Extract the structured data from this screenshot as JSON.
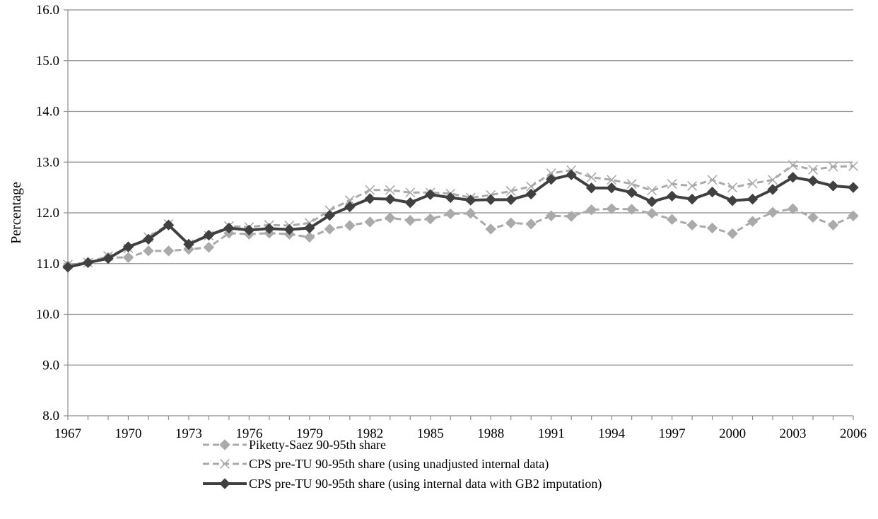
{
  "chart_data": {
    "type": "line",
    "title": "",
    "xlabel": "",
    "ylabel": "Percentage",
    "ylim": [
      8.0,
      16.0
    ],
    "yticks": [
      "8.0",
      "9.0",
      "10.0",
      "11.0",
      "12.0",
      "13.0",
      "14.0",
      "15.0",
      "16.0"
    ],
    "xlim": [
      1967,
      2006
    ],
    "xticks": [
      "1967",
      "1970",
      "1973",
      "1976",
      "1979",
      "1982",
      "1985",
      "1988",
      "1991",
      "1994",
      "1997",
      "2000",
      "2003",
      "2006"
    ],
    "grid": "horizontal",
    "legend_position": "bottom",
    "x": [
      1967,
      1968,
      1969,
      1970,
      1971,
      1972,
      1973,
      1974,
      1975,
      1976,
      1977,
      1978,
      1979,
      1980,
      1981,
      1982,
      1983,
      1984,
      1985,
      1986,
      1987,
      1988,
      1989,
      1990,
      1991,
      1992,
      1993,
      1994,
      1995,
      1996,
      1997,
      1998,
      1999,
      2000,
      2001,
      2002,
      2003,
      2004,
      2005,
      2006
    ],
    "series": [
      {
        "name": "Piketty-Saez 90-95th share",
        "color": "#aaaaaa",
        "line": "dashed",
        "marker": "diamond",
        "values": [
          10.96,
          11.02,
          11.12,
          11.12,
          11.25,
          11.25,
          11.28,
          11.32,
          11.6,
          11.58,
          11.6,
          11.58,
          11.52,
          11.68,
          11.75,
          11.82,
          11.9,
          11.85,
          11.88,
          11.98,
          11.99,
          11.68,
          11.8,
          11.78,
          11.94,
          11.93,
          12.06,
          12.08,
          12.07,
          11.99,
          11.87,
          11.76,
          11.7,
          11.59,
          11.83,
          12.01,
          12.08,
          11.91,
          11.76,
          11.94
        ]
      },
      {
        "name": "CPS pre-TU 90-95th share (using unadjusted internal data)",
        "color": "#aaaaaa",
        "line": "dashed",
        "marker": "x",
        "values": [
          10.98,
          11.02,
          11.15,
          11.3,
          11.52,
          11.78,
          11.38,
          11.55,
          11.74,
          11.72,
          11.76,
          11.75,
          11.8,
          12.05,
          12.25,
          12.45,
          12.45,
          12.4,
          12.4,
          12.38,
          12.3,
          12.35,
          12.43,
          12.52,
          12.78,
          12.84,
          12.7,
          12.65,
          12.57,
          12.44,
          12.57,
          12.53,
          12.65,
          12.5,
          12.58,
          12.65,
          12.94,
          12.85,
          12.91,
          12.92
        ]
      },
      {
        "name": "CPS pre-TU 90-95th share (using internal data with GB2 imputation)",
        "color": "#404040",
        "line": "solid",
        "marker": "diamond",
        "values": [
          10.93,
          11.02,
          11.1,
          11.33,
          11.48,
          11.76,
          11.38,
          11.56,
          11.7,
          11.66,
          11.69,
          11.67,
          11.7,
          11.95,
          12.12,
          12.28,
          12.27,
          12.2,
          12.36,
          12.3,
          12.25,
          12.26,
          12.26,
          12.37,
          12.66,
          12.75,
          12.49,
          12.49,
          12.4,
          12.22,
          12.33,
          12.27,
          12.41,
          12.24,
          12.27,
          12.46,
          12.7,
          12.63,
          12.53,
          12.5
        ]
      }
    ]
  }
}
